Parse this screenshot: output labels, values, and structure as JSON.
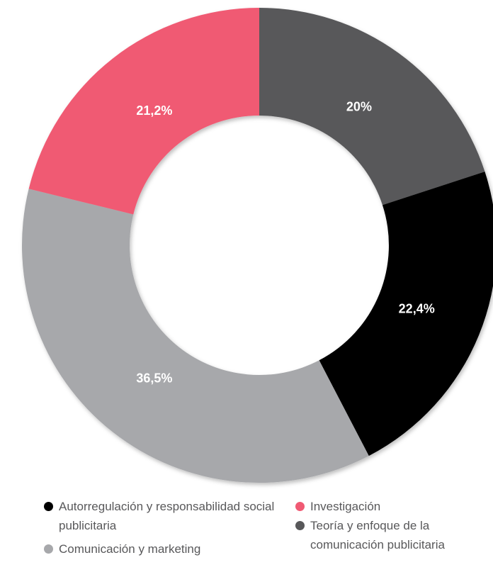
{
  "chart_data": {
    "type": "donut",
    "categories": [
      "Teoría y enfoque de la comunicación publicitaria",
      "Autorregulación y responsabilidad social publicitaria",
      "Comunicación y marketing",
      "Investigación"
    ],
    "values": [
      20,
      22.4,
      36.5,
      21.2
    ],
    "value_labels": [
      "20%",
      "22,4%",
      "36,5%",
      "21,2%"
    ],
    "colors": [
      "#58585a",
      "#000000",
      "#a7a8ab",
      "#f05a73"
    ]
  }
}
